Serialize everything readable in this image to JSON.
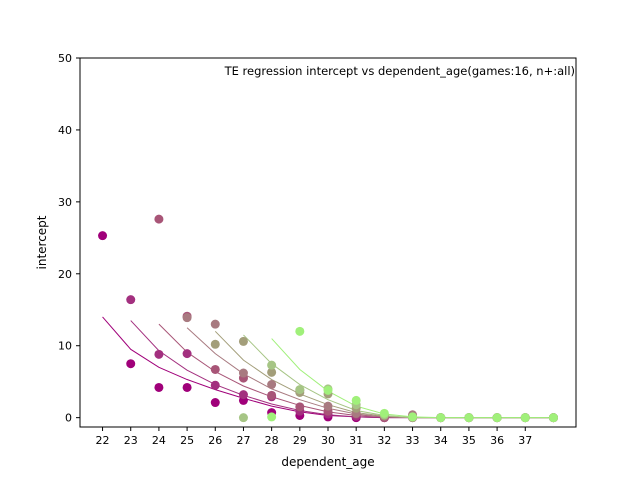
{
  "chart_data": {
    "type": "scatter",
    "title": "TE regression intercept vs dependent_age(games:16, n+:all)",
    "xlabel": "dependent_age",
    "ylabel": "intercept",
    "xlim": [
      21.2,
      38.8
    ],
    "ylim": [
      -1.3,
      50
    ],
    "xticks": [
      22,
      23,
      24,
      25,
      26,
      27,
      28,
      29,
      30,
      31,
      32,
      33,
      34,
      35,
      36,
      37
    ],
    "yticks": [
      0,
      10,
      20,
      30,
      40,
      50
    ],
    "grid": false,
    "legend": "none",
    "series": [
      {
        "color": "#a0007a",
        "points": [
          [
            22,
            25.3
          ],
          [
            23,
            7.5
          ],
          [
            24,
            4.2
          ],
          [
            25,
            4.2
          ],
          [
            26,
            2.1
          ],
          [
            27,
            2.4
          ],
          [
            28,
            0.7
          ],
          [
            29,
            0.3
          ],
          [
            30,
            0.1
          ],
          [
            31,
            0.0
          ],
          [
            32,
            0.0
          ],
          [
            33,
            0.0
          ],
          [
            34,
            0.0
          ],
          [
            35,
            0.0
          ],
          [
            36,
            0.0
          ],
          [
            37,
            0.0
          ],
          [
            38,
            0.0
          ]
        ],
        "fit": [
          [
            22,
            14.0
          ],
          [
            23,
            9.5
          ],
          [
            24,
            7.0
          ],
          [
            25,
            5.3
          ],
          [
            26,
            3.9
          ],
          [
            27,
            2.7
          ],
          [
            28,
            1.6
          ],
          [
            29,
            0.8
          ],
          [
            30,
            0.3
          ],
          [
            31,
            0.1
          ],
          [
            32,
            0.0
          ],
          [
            33,
            0.0
          ],
          [
            34,
            0.0
          ],
          [
            35,
            0.0
          ],
          [
            36,
            0.0
          ],
          [
            37,
            0.0
          ],
          [
            38,
            0.0
          ]
        ]
      },
      {
        "color": "#a3307f",
        "points": [
          [
            23,
            16.4
          ],
          [
            24,
            8.8
          ],
          [
            25,
            8.9
          ],
          [
            26,
            4.5
          ],
          [
            27,
            3.2
          ],
          [
            28,
            2.9
          ],
          [
            29,
            0.9
          ],
          [
            30,
            0.5
          ],
          [
            31,
            0.2
          ],
          [
            32,
            0.0
          ],
          [
            33,
            0.1
          ],
          [
            34,
            0.0
          ],
          [
            35,
            0.0
          ],
          [
            36,
            0.0
          ],
          [
            37,
            0.0
          ],
          [
            38,
            0.0
          ]
        ],
        "fit": [
          [
            23,
            13.5
          ],
          [
            24,
            9.3
          ],
          [
            25,
            6.6
          ],
          [
            26,
            4.6
          ],
          [
            27,
            3.1
          ],
          [
            28,
            1.9
          ],
          [
            29,
            1.0
          ],
          [
            30,
            0.4
          ],
          [
            31,
            0.1
          ],
          [
            32,
            0.0
          ],
          [
            33,
            0.0
          ],
          [
            34,
            0.0
          ],
          [
            35,
            0.0
          ],
          [
            36,
            0.0
          ],
          [
            37,
            0.0
          ],
          [
            38,
            0.0
          ]
        ]
      },
      {
        "color": "#a85577",
        "points": [
          [
            24,
            27.6
          ],
          [
            25,
            14.1
          ],
          [
            26,
            6.7
          ],
          [
            27,
            5.5
          ],
          [
            28,
            3.1
          ],
          [
            29,
            1.5
          ],
          [
            30,
            0.9
          ],
          [
            31,
            0.5
          ],
          [
            32,
            0.0
          ],
          [
            33,
            0.3
          ],
          [
            34,
            0.0
          ],
          [
            35,
            0.0
          ],
          [
            36,
            0.0
          ],
          [
            37,
            0.0
          ],
          [
            38,
            0.0
          ]
        ],
        "fit": [
          [
            24,
            13.0
          ],
          [
            25,
            9.1
          ],
          [
            26,
            6.4
          ],
          [
            27,
            4.4
          ],
          [
            28,
            2.9
          ],
          [
            29,
            1.7
          ],
          [
            30,
            0.8
          ],
          [
            31,
            0.3
          ],
          [
            32,
            0.1
          ],
          [
            33,
            0.0
          ],
          [
            34,
            0.0
          ],
          [
            35,
            0.0
          ],
          [
            36,
            0.0
          ],
          [
            37,
            0.0
          ],
          [
            38,
            0.0
          ]
        ]
      },
      {
        "color": "#a87a80",
        "points": [
          [
            25,
            13.9
          ],
          [
            26,
            13.0
          ],
          [
            27,
            6.2
          ],
          [
            28,
            4.6
          ],
          [
            29,
            3.8
          ],
          [
            30,
            1.6
          ],
          [
            31,
            0.6
          ],
          [
            32,
            0.2
          ],
          [
            33,
            0.4
          ],
          [
            34,
            0.0
          ],
          [
            35,
            0.0
          ],
          [
            36,
            0.0
          ],
          [
            37,
            0.0
          ],
          [
            38,
            0.0
          ]
        ],
        "fit": [
          [
            25,
            12.5
          ],
          [
            26,
            8.9
          ],
          [
            27,
            6.1
          ],
          [
            28,
            4.0
          ],
          [
            29,
            2.5
          ],
          [
            30,
            1.3
          ],
          [
            31,
            0.5
          ],
          [
            32,
            0.1
          ],
          [
            33,
            0.0
          ],
          [
            34,
            0.0
          ],
          [
            35,
            0.0
          ],
          [
            36,
            0.0
          ],
          [
            37,
            0.0
          ],
          [
            38,
            0.0
          ]
        ]
      },
      {
        "color": "#a39e7a",
        "points": [
          [
            26,
            10.2
          ],
          [
            27,
            10.6
          ],
          [
            28,
            6.3
          ],
          [
            29,
            3.5
          ],
          [
            30,
            3.3
          ],
          [
            31,
            1.3
          ],
          [
            32,
            0.3
          ],
          [
            33,
            0.0
          ],
          [
            34,
            0.0
          ],
          [
            35,
            0.0
          ],
          [
            36,
            0.0
          ],
          [
            37,
            0.0
          ],
          [
            38,
            0.0
          ]
        ],
        "fit": [
          [
            26,
            12.0
          ],
          [
            27,
            8.0
          ],
          [
            28,
            5.3
          ],
          [
            29,
            3.3
          ],
          [
            30,
            1.8
          ],
          [
            31,
            0.7
          ],
          [
            32,
            0.2
          ],
          [
            33,
            0.0
          ],
          [
            34,
            0.0
          ],
          [
            35,
            0.0
          ],
          [
            36,
            0.0
          ],
          [
            37,
            0.0
          ],
          [
            38,
            0.0
          ]
        ]
      },
      {
        "color": "#a6c585",
        "points": [
          [
            27,
            0.0
          ],
          [
            28,
            7.3
          ],
          [
            29,
            3.9
          ],
          [
            30,
            4.0
          ],
          [
            31,
            1.8
          ],
          [
            32,
            0.4
          ],
          [
            33,
            0.1
          ],
          [
            34,
            0.0
          ],
          [
            35,
            0.0
          ],
          [
            36,
            0.0
          ],
          [
            37,
            0.0
          ],
          [
            38,
            0.0
          ]
        ],
        "fit": [
          [
            27,
            11.5
          ],
          [
            28,
            7.5
          ],
          [
            29,
            4.6
          ],
          [
            30,
            2.5
          ],
          [
            31,
            1.0
          ],
          [
            32,
            0.3
          ],
          [
            33,
            0.0
          ],
          [
            34,
            0.0
          ],
          [
            35,
            0.0
          ],
          [
            36,
            0.0
          ],
          [
            37,
            0.0
          ],
          [
            38,
            0.0
          ]
        ]
      },
      {
        "color": "#a0f07a",
        "points": [
          [
            28,
            0.1
          ],
          [
            29,
            12.0
          ],
          [
            30,
            3.8
          ],
          [
            31,
            2.4
          ],
          [
            32,
            0.6
          ],
          [
            33,
            0.1
          ],
          [
            34,
            0.0
          ],
          [
            35,
            0.0
          ],
          [
            36,
            0.0
          ],
          [
            37,
            0.0
          ],
          [
            38,
            0.0
          ]
        ],
        "fit": [
          [
            28,
            11.0
          ],
          [
            29,
            6.7
          ],
          [
            30,
            3.7
          ],
          [
            31,
            1.6
          ],
          [
            32,
            0.5
          ],
          [
            33,
            0.1
          ],
          [
            34,
            0.0
          ],
          [
            35,
            0.0
          ],
          [
            36,
            0.0
          ],
          [
            37,
            0.0
          ],
          [
            38,
            0.0
          ]
        ]
      }
    ]
  }
}
